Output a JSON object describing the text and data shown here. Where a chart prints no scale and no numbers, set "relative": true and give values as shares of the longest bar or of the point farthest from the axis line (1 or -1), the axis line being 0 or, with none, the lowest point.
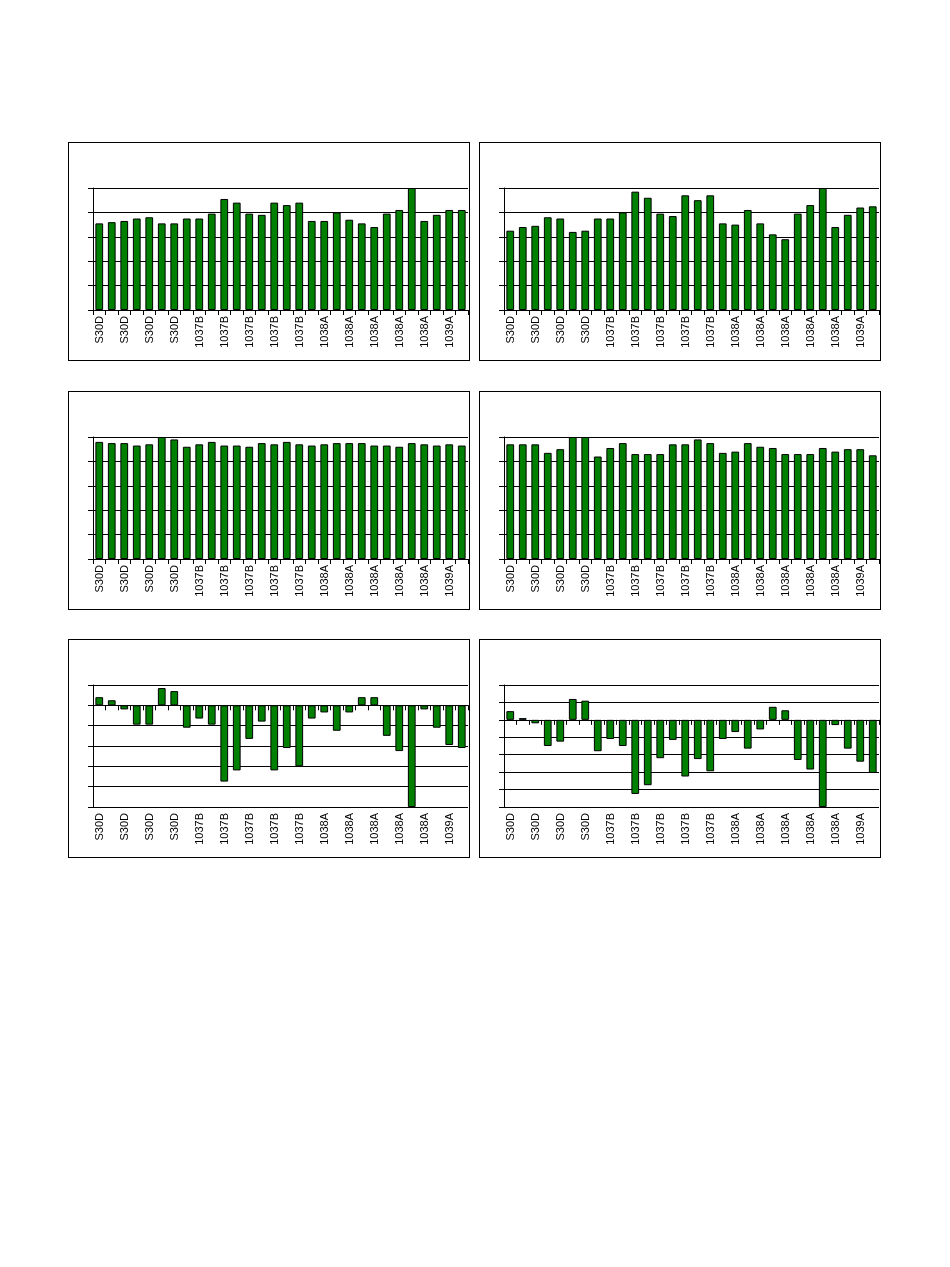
{
  "chart_data": [
    {
      "type": "bar",
      "relative": true,
      "grid": "y",
      "color": "#008000",
      "categories": [
        "S30D",
        null,
        "S30D",
        null,
        "S30D",
        null,
        "S30D",
        null,
        "1037B",
        null,
        "1037B",
        null,
        "1037B",
        null,
        "1037B",
        null,
        "1037B",
        null,
        "1038A",
        null,
        "1038A",
        null,
        "1038A",
        null,
        "1038A",
        null,
        "1038A",
        null,
        "1039A",
        null
      ],
      "values": [
        0.71,
        0.72,
        0.73,
        0.75,
        0.76,
        0.71,
        0.71,
        0.75,
        0.75,
        0.79,
        0.91,
        0.88,
        0.79,
        0.78,
        0.88,
        0.86,
        0.88,
        0.73,
        0.73,
        0.8,
        0.74,
        0.71,
        0.68,
        0.79,
        0.82,
        1,
        0.73,
        0.78,
        0.82,
        0.82
      ]
    },
    {
      "type": "bar",
      "relative": true,
      "grid": "y",
      "color": "#008000",
      "categories": [
        "S30D",
        null,
        "S30D",
        null,
        "S30D",
        null,
        "S30D",
        null,
        "1037B",
        null,
        "1037B",
        null,
        "1037B",
        null,
        "1037B",
        null,
        "1037B",
        null,
        "1038A",
        null,
        "1038A",
        null,
        "1038A",
        null,
        "1038A",
        null,
        "1038A",
        null,
        "1039A",
        null
      ],
      "values": [
        0.65,
        0.68,
        0.69,
        0.76,
        0.75,
        0.64,
        0.65,
        0.75,
        0.75,
        0.8,
        0.97,
        0.92,
        0.79,
        0.77,
        0.94,
        0.9,
        0.94,
        0.71,
        0.7,
        0.82,
        0.71,
        0.62,
        0.58,
        0.79,
        0.86,
        1,
        0.68,
        0.78,
        0.84,
        0.85
      ]
    },
    {
      "type": "bar",
      "relative": true,
      "grid": "y",
      "color": "#008000",
      "categories": [
        "S30D",
        null,
        "S30D",
        null,
        "S30D",
        null,
        "S30D",
        null,
        "1037B",
        null,
        "1037B",
        null,
        "1037B",
        null,
        "1037B",
        null,
        "1037B",
        null,
        "1038A",
        null,
        "1038A",
        null,
        "1038A",
        null,
        "1038A",
        null,
        "1038A",
        null,
        "1039A",
        null
      ],
      "values": [
        0.96,
        0.95,
        0.95,
        0.93,
        0.94,
        1,
        0.98,
        0.92,
        0.94,
        0.96,
        0.93,
        0.93,
        0.92,
        0.95,
        0.94,
        0.96,
        0.94,
        0.93,
        0.94,
        0.95,
        0.95,
        0.95,
        0.93,
        0.93,
        0.92,
        0.95,
        0.94,
        0.93,
        0.94,
        0.93
      ]
    },
    {
      "type": "bar",
      "relative": true,
      "grid": "y",
      "color": "#008000",
      "categories": [
        "S30D",
        null,
        "S30D",
        null,
        "S30D",
        null,
        "S30D",
        null,
        "1037B",
        null,
        "1037B",
        null,
        "1037B",
        null,
        "1037B",
        null,
        "1037B",
        null,
        "1038A",
        null,
        "1038A",
        null,
        "1038A",
        null,
        "1038A",
        null,
        "1038A",
        null,
        "1039A",
        null
      ],
      "values": [
        0.94,
        0.94,
        0.94,
        0.87,
        0.9,
        1,
        1,
        0.84,
        0.91,
        0.95,
        0.86,
        0.86,
        0.86,
        0.94,
        0.94,
        0.98,
        0.95,
        0.87,
        0.88,
        0.95,
        0.92,
        0.91,
        0.86,
        0.86,
        0.86,
        0.91,
        0.88,
        0.9,
        0.9,
        0.85
      ]
    },
    {
      "type": "bar",
      "relative": true,
      "grid": "y",
      "color": "#008000",
      "categories": [
        "S30D",
        null,
        "S30D",
        null,
        "S30D",
        null,
        "S30D",
        null,
        "1037B",
        null,
        "1037B",
        null,
        "1037B",
        null,
        "1037B",
        null,
        "1037B",
        null,
        "1038A",
        null,
        "1038A",
        null,
        "1038A",
        null,
        "1038A",
        null,
        "1038A",
        null,
        "1039A",
        null
      ],
      "values": [
        0.08,
        0.05,
        -0.04,
        -0.19,
        -0.19,
        0.17,
        0.14,
        -0.22,
        -0.13,
        -0.19,
        -0.75,
        -0.64,
        -0.33,
        -0.16,
        -0.64,
        -0.42,
        -0.6,
        -0.13,
        -0.07,
        -0.25,
        -0.07,
        0.08,
        0.08,
        -0.3,
        -0.45,
        -1,
        -0.04,
        -0.22,
        -0.39,
        -0.42
      ]
    },
    {
      "type": "bar",
      "relative": true,
      "grid": "y",
      "color": "#008000",
      "categories": [
        "S30D",
        null,
        "S30D",
        null,
        "S30D",
        null,
        "S30D",
        null,
        "1037B",
        null,
        "1037B",
        null,
        "1037B",
        null,
        "1037B",
        null,
        "1037B",
        null,
        "1038A",
        null,
        "1038A",
        null,
        "1038A",
        null,
        "1038A",
        null,
        "1038A",
        null,
        "1039A",
        null
      ],
      "values": [
        0.1,
        0.02,
        -0.04,
        -0.3,
        -0.25,
        0.24,
        0.22,
        -0.36,
        -0.22,
        -0.3,
        -0.85,
        -0.75,
        -0.44,
        -0.23,
        -0.65,
        -0.45,
        -0.59,
        -0.22,
        -0.14,
        -0.33,
        -0.11,
        0.15,
        0.11,
        -0.46,
        -0.57,
        -1,
        -0.06,
        -0.33,
        -0.48,
        -0.61
      ]
    }
  ]
}
